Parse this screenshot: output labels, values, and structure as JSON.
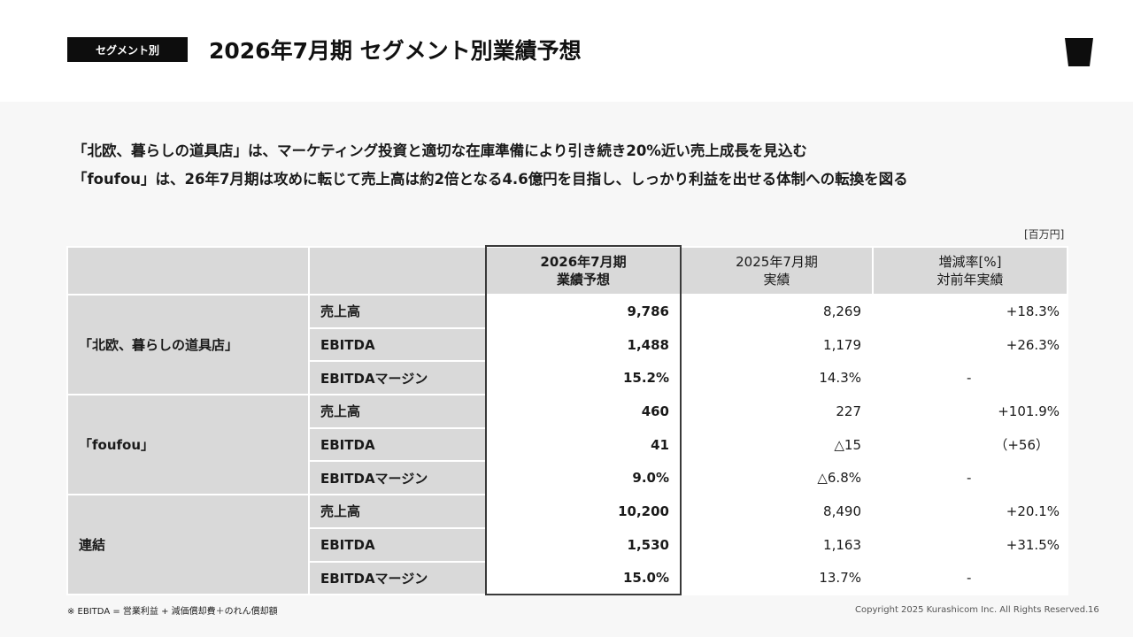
{
  "header": {
    "tag": "セグメント別",
    "title": "2026年7月期 セグメント別業績予想"
  },
  "lead": {
    "line1": "「北欧、暮らしの道具店」は、マーケティング投資と適切な在庫準備により引き続き20%近い売上成長を見込む",
    "line2": "「foufou」は、26年7月期は攻めに転じて売上高は約2倍となる4.6億円を目指し、しっかり利益を出せる体制への転換を図る"
  },
  "unit": "[百万円]",
  "table": {
    "columns": [
      {
        "line1": "2026年7月期",
        "line2": "業績予想"
      },
      {
        "line1": "2025年7月期",
        "line2": "実績"
      },
      {
        "line1": "増減率[%]",
        "line2": "対前年実績"
      }
    ],
    "segments": [
      {
        "name": "「北欧、暮らしの道具店」",
        "rows": [
          {
            "metric": "売上高",
            "forecast": "9,786",
            "actual": "8,269",
            "change": "+18.3%"
          },
          {
            "metric": "EBITDA",
            "forecast": "1,488",
            "actual": "1,179",
            "change": "+26.3%"
          },
          {
            "metric": "EBITDAマージン",
            "forecast": "15.2%",
            "actual": "14.3%",
            "change": "-"
          }
        ]
      },
      {
        "name": "「foufou」",
        "rows": [
          {
            "metric": "売上高",
            "forecast": "460",
            "actual": "227",
            "change": "+101.9%"
          },
          {
            "metric": "EBITDA",
            "forecast": "41",
            "actual": "△15",
            "change": "（+56）"
          },
          {
            "metric": "EBITDAマージン",
            "forecast": "9.0%",
            "actual": "△6.8%",
            "change": "-"
          }
        ]
      },
      {
        "name": "連結",
        "rows": [
          {
            "metric": "売上高",
            "forecast": "10,200",
            "actual": "8,490",
            "change": "+20.1%"
          },
          {
            "metric": "EBITDA",
            "forecast": "1,530",
            "actual": "1,163",
            "change": "+31.5%"
          },
          {
            "metric": "EBITDAマージン",
            "forecast": "15.0%",
            "actual": "13.7%",
            "change": "-"
          }
        ]
      }
    ]
  },
  "footer": {
    "note": "※ EBITDA = 営業利益 + 減価償却費＋のれん償却額",
    "copyright": "Copyright 2025 Kurashicom Inc. All Rights Reserved.",
    "page": "16"
  },
  "colors": {
    "tag_bg": "#0d0d0d",
    "header_cell": "#d9d9d9",
    "highlight_border": "#3a3a3a"
  },
  "icons": {
    "logo": "cup-logo-icon"
  }
}
